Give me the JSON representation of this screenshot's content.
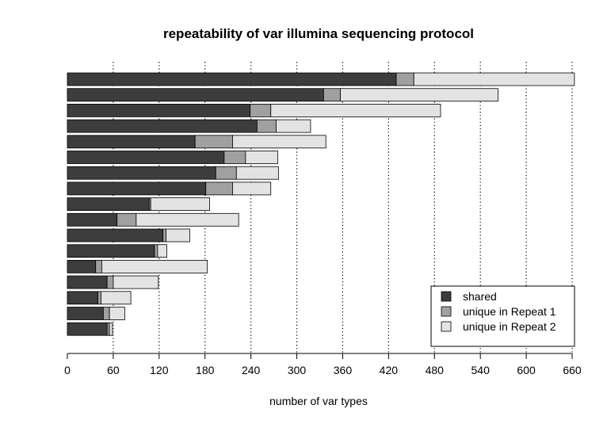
{
  "chart_data": {
    "type": "bar",
    "orientation": "horizontal",
    "stacked": true,
    "title": "repeatability of var illumina sequencing protocol",
    "xlabel": "number of var types",
    "ylabel": "",
    "xlim": [
      0,
      660
    ],
    "xticks": [
      0,
      60,
      120,
      180,
      240,
      300,
      360,
      420,
      480,
      540,
      600,
      660
    ],
    "grid": "vertical dotted",
    "legend_position": "bottom-right",
    "series": [
      {
        "name": "shared",
        "color": "#3d3d3d",
        "values": [
          430,
          335,
          239,
          248,
          167,
          205,
          194,
          181,
          107,
          65,
          125,
          114,
          37,
          52,
          40,
          47,
          52
        ]
      },
      {
        "name": "unique in Repeat 1",
        "color": "#a0a0a0",
        "values": [
          23,
          22,
          27,
          25,
          49,
          28,
          27,
          35,
          2,
          25,
          4,
          4,
          8,
          8,
          4,
          8,
          3
        ]
      },
      {
        "name": "unique in Repeat 2",
        "color": "#e3e3e3",
        "values": [
          210,
          206,
          222,
          45,
          122,
          42,
          55,
          50,
          77,
          134,
          31,
          12,
          138,
          59,
          39,
          20,
          4
        ]
      }
    ]
  }
}
